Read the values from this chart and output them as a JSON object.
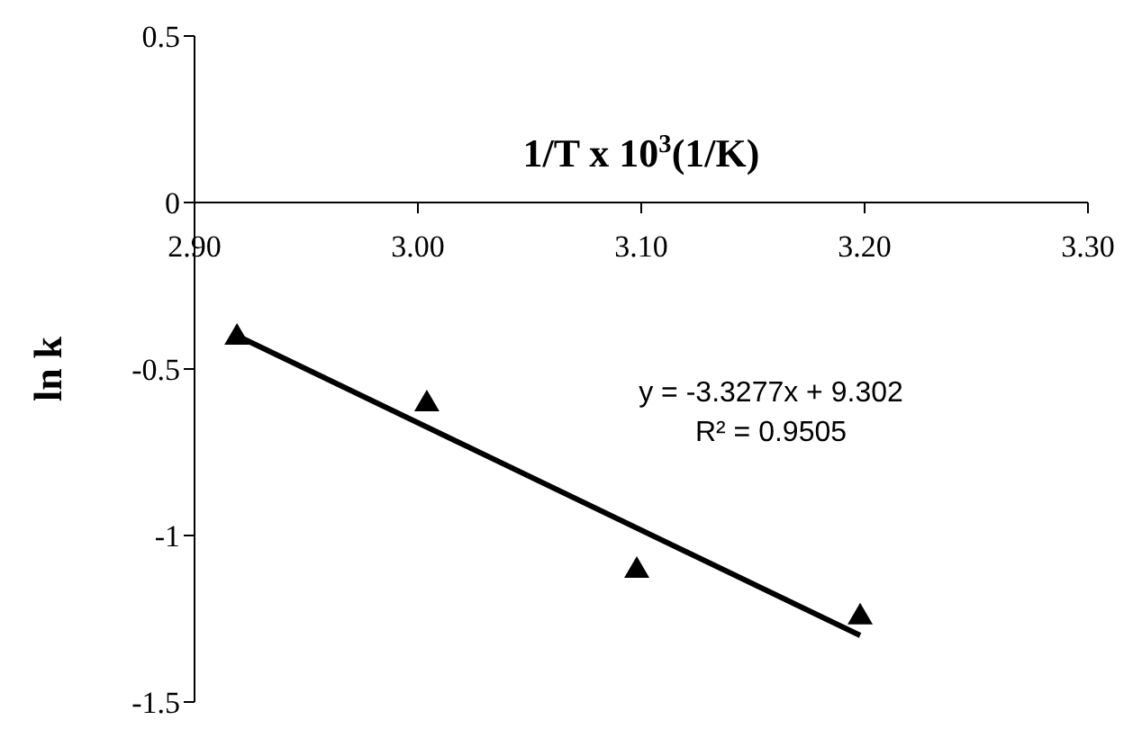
{
  "chart_data": {
    "type": "scatter",
    "xlabel": "1/T x 10$^{3}$(1/K)",
    "ylabel": "ln k",
    "x": [
      2.919,
      3.004,
      3.098,
      3.198
    ],
    "series": [
      {
        "color": "#000000",
        "marker": "triangle",
        "values": [
          -0.4,
          -0.6,
          -1.1,
          -1.24
        ]
      },
      {
        "type": "line",
        "color": "#000000",
        "marker": "none",
        "x": [
          2.919,
          3.198
        ],
        "values": [
          -0.4,
          -1.3
        ]
      }
    ],
    "xlim": [
      2.9,
      3.3
    ],
    "xticks": [
      {
        "value": 2.9,
        "label": "2.90"
      },
      {
        "value": 3.0,
        "label": "3.00"
      },
      {
        "value": 3.1,
        "label": "3.10"
      },
      {
        "value": 3.2,
        "label": "3.20"
      },
      {
        "value": 3.3,
        "label": "3.30"
      }
    ],
    "ylim": [
      -1.5,
      0.5
    ],
    "yticks": [
      0.5,
      0,
      -0.5,
      -1,
      -1.5
    ],
    "annotations": [
      "y = -3.3277x + 9.302",
      "R² = 0.9505"
    ],
    "grid": false,
    "legend": false
  }
}
